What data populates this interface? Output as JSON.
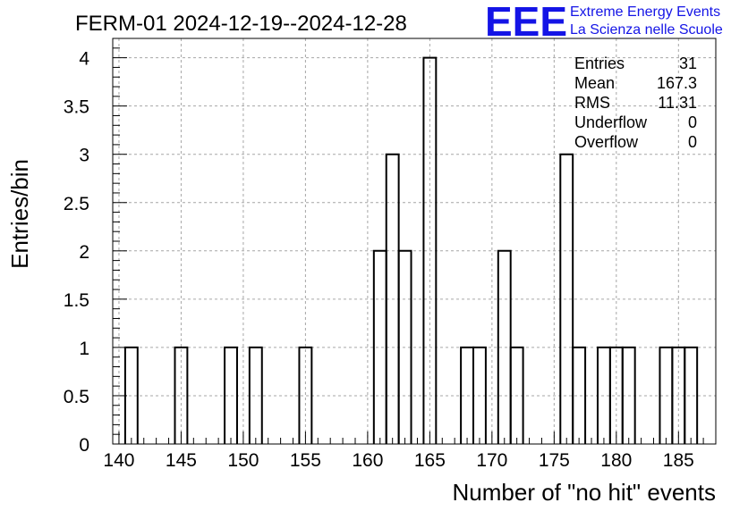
{
  "chart_data": {
    "type": "bar",
    "title": "FERM-01 2024-12-19--2024-12-28",
    "xlabel": "Number of \"no hit\" events",
    "ylabel": "Entries/bin",
    "xlim": [
      139.5,
      188
    ],
    "ylim": [
      0,
      4.2
    ],
    "bin_width": 1,
    "grid": true,
    "x_ticks": [
      "140",
      "145",
      "150",
      "155",
      "160",
      "165",
      "170",
      "175",
      "180",
      "185"
    ],
    "y_ticks": [
      "0",
      "0.5",
      "1",
      "1.5",
      "2",
      "2.5",
      "3",
      "3.5",
      "4"
    ],
    "bins": [
      {
        "x": 141,
        "value": 1
      },
      {
        "x": 145,
        "value": 1
      },
      {
        "x": 149,
        "value": 1
      },
      {
        "x": 151,
        "value": 1
      },
      {
        "x": 155,
        "value": 1
      },
      {
        "x": 161,
        "value": 2
      },
      {
        "x": 162,
        "value": 3
      },
      {
        "x": 163,
        "value": 2
      },
      {
        "x": 165,
        "value": 4
      },
      {
        "x": 168,
        "value": 1
      },
      {
        "x": 169,
        "value": 1
      },
      {
        "x": 171,
        "value": 2
      },
      {
        "x": 172,
        "value": 1
      },
      {
        "x": 176,
        "value": 3
      },
      {
        "x": 177,
        "value": 1
      },
      {
        "x": 179,
        "value": 1
      },
      {
        "x": 180,
        "value": 1
      },
      {
        "x": 181,
        "value": 1
      },
      {
        "x": 184,
        "value": 1
      },
      {
        "x": 185,
        "value": 1
      },
      {
        "x": 186,
        "value": 1
      }
    ],
    "stats": [
      {
        "label": "Entries",
        "value": "31"
      },
      {
        "label": "Mean",
        "value": "167.3"
      },
      {
        "label": "RMS",
        "value": "11.31"
      },
      {
        "label": "Underflow",
        "value": "0"
      },
      {
        "label": "Overflow",
        "value": "0"
      }
    ]
  },
  "logo": {
    "mark": "EEE",
    "line1": "Extreme Energy Events",
    "line2": "La Scienza nelle Scuole",
    "color": "#1414e6"
  }
}
